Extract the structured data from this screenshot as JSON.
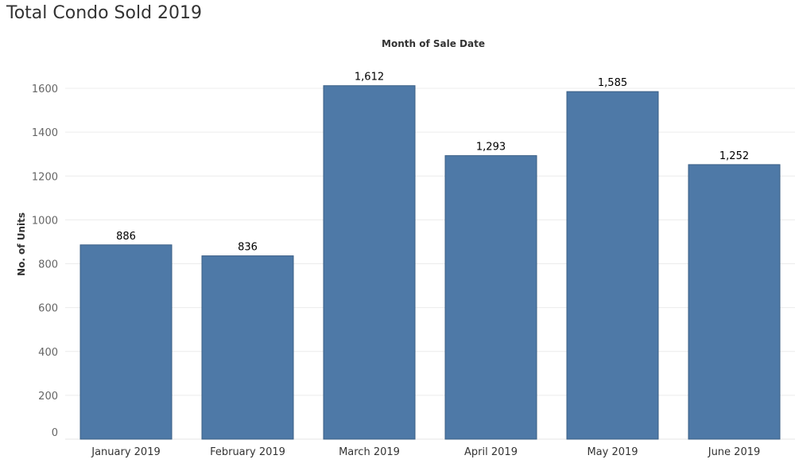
{
  "chart_data": {
    "type": "bar",
    "title": "Total Condo Sold 2019",
    "xlabel": "Month of Sale Date",
    "ylabel": "No. of Units",
    "categories": [
      "January 2019",
      "February 2019",
      "March 2019",
      "April 2019",
      "May 2019",
      "June 2019"
    ],
    "values": [
      886,
      836,
      1612,
      1293,
      1585,
      1252
    ],
    "value_labels": [
      "886",
      "836",
      "1,612",
      "1,293",
      "1,585",
      "1,252"
    ],
    "yticks": [
      "0",
      "200",
      "400",
      "600",
      "800",
      "1000",
      "1200",
      "1400",
      "1600"
    ],
    "ylim": [
      0,
      1700
    ],
    "grid": true,
    "legend": "none",
    "bar_color": "#4e79a7",
    "bar_border": "#3b5f86"
  }
}
